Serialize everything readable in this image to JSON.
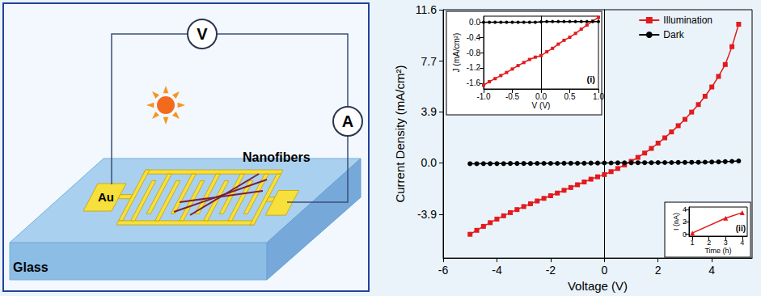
{
  "diagram": {
    "voltmeter": "V",
    "ammeter": "A",
    "electrode": "Au",
    "fibers": "Nanofibers",
    "substrate": "Glass"
  },
  "chart_data": [
    {
      "type": "line",
      "x_label": "Voltage (V)",
      "y_label": "Current Density (mA/cm²)",
      "x": [
        -5,
        -4.75,
        -4.5,
        -4.25,
        -4,
        -3.75,
        -3.5,
        -3.25,
        -3,
        -2.75,
        -2.5,
        -2.25,
        -2,
        -1.75,
        -1.5,
        -1.25,
        -1,
        -0.75,
        -0.5,
        -0.25,
        0,
        0.25,
        0.5,
        0.75,
        1,
        1.25,
        1.5,
        1.75,
        2,
        2.25,
        2.5,
        2.75,
        3,
        3.25,
        3.5,
        3.75,
        4,
        4.25,
        4.5,
        4.75,
        5
      ],
      "series": [
        {
          "name": "Illumination",
          "color": "#e31a1c",
          "marker": "square",
          "values": [
            -5.4,
            -5.1,
            -4.8,
            -4.52,
            -4.25,
            -4,
            -3.76,
            -3.53,
            -3.3,
            -3.09,
            -2.88,
            -2.68,
            -2.48,
            -2.28,
            -2.07,
            -1.86,
            -1.65,
            -1.44,
            -1.23,
            -1.05,
            -0.88,
            -0.66,
            -0.42,
            -0.15,
            0.12,
            0.42,
            0.75,
            1.1,
            1.5,
            1.9,
            2.35,
            2.82,
            3.3,
            3.85,
            4.42,
            5.05,
            5.75,
            6.55,
            7.45,
            8.8,
            10.5
          ]
        },
        {
          "name": "Dark",
          "color": "#000000",
          "marker": "circle",
          "values": [
            -0.06,
            -0.06,
            -0.05,
            -0.05,
            -0.05,
            -0.05,
            -0.04,
            -0.04,
            -0.04,
            -0.04,
            -0.03,
            -0.03,
            -0.03,
            -0.03,
            -0.02,
            -0.02,
            -0.02,
            -0.02,
            -0.01,
            -0.01,
            0,
            0,
            0.01,
            0.01,
            0.01,
            0.02,
            0.02,
            0.02,
            0.03,
            0.03,
            0.03,
            0.04,
            0.04,
            0.05,
            0.05,
            0.06,
            0.07,
            0.08,
            0.1,
            0.12,
            0.15
          ]
        }
      ],
      "xlim": [
        -6,
        5.5
      ],
      "xticks": [
        -6,
        -4,
        -2,
        0,
        2,
        4
      ],
      "ylim": [
        -7.2,
        11.6
      ],
      "yticks": [
        -3.9,
        {
          "value": 0,
          "label": "0.0"
        },
        3.9,
        7.7,
        11.6
      ],
      "legend": "top-right",
      "grid": false
    },
    {
      "type": "line",
      "title": "(i)",
      "x_label": "V (V)",
      "y_label": "J (mA/cm²)",
      "x": [
        -1,
        -0.9,
        -0.8,
        -0.7,
        -0.6,
        -0.5,
        -0.4,
        -0.3,
        -0.2,
        -0.1,
        0,
        0.1,
        0.2,
        0.3,
        0.4,
        0.5,
        0.6,
        0.7,
        0.8,
        0.9,
        1
      ],
      "series": [
        {
          "color": "#e31a1c",
          "marker": "square",
          "values": [
            -1.65,
            -1.56,
            -1.48,
            -1.4,
            -1.32,
            -1.23,
            -1.14,
            -1.06,
            -0.98,
            -0.92,
            -0.88,
            -0.78,
            -0.69,
            -0.58,
            -0.48,
            -0.4,
            -0.3,
            -0.19,
            -0.08,
            0.02,
            0.12
          ]
        },
        {
          "color": "#000000",
          "marker": "circle",
          "values": [
            -0.01,
            -0.01,
            -0.01,
            -0.01,
            -0.01,
            -0.01,
            -0.01,
            -0.01,
            -0.01,
            -0.01,
            0,
            0.01,
            0.01,
            0.01,
            0.01,
            0.01,
            0.01,
            0.01,
            0.01,
            0.01,
            0.01
          ]
        }
      ],
      "xlim": [
        -1,
        1
      ],
      "xticks": [
        {
          "value": -1,
          "label": "-1.0"
        },
        -0.5,
        {
          "value": 0,
          "label": "0.0"
        },
        0.5,
        {
          "value": 1,
          "label": "1.0"
        }
      ],
      "ylim": [
        -1.75,
        0.15
      ],
      "yticks": [
        {
          "value": 0,
          "label": "0.0"
        },
        -0.4,
        -0.8,
        -1.2,
        -1.6
      ],
      "grid": false
    },
    {
      "type": "line",
      "title": "(ii)",
      "x_label": "Time (h)",
      "y_label": "I (nA)",
      "x": [
        1,
        3,
        4
      ],
      "series": [
        {
          "color": "#e31a1c",
          "marker": "triangle",
          "values": [
            0.2,
            2.6,
            3.5
          ]
        }
      ],
      "xlim": [
        0.8,
        4.3
      ],
      "xticks": [
        1,
        2,
        3,
        4
      ],
      "ylim": [
        -0.3,
        4.4
      ],
      "yticks": [
        0,
        2,
        4
      ],
      "grid": false
    }
  ]
}
